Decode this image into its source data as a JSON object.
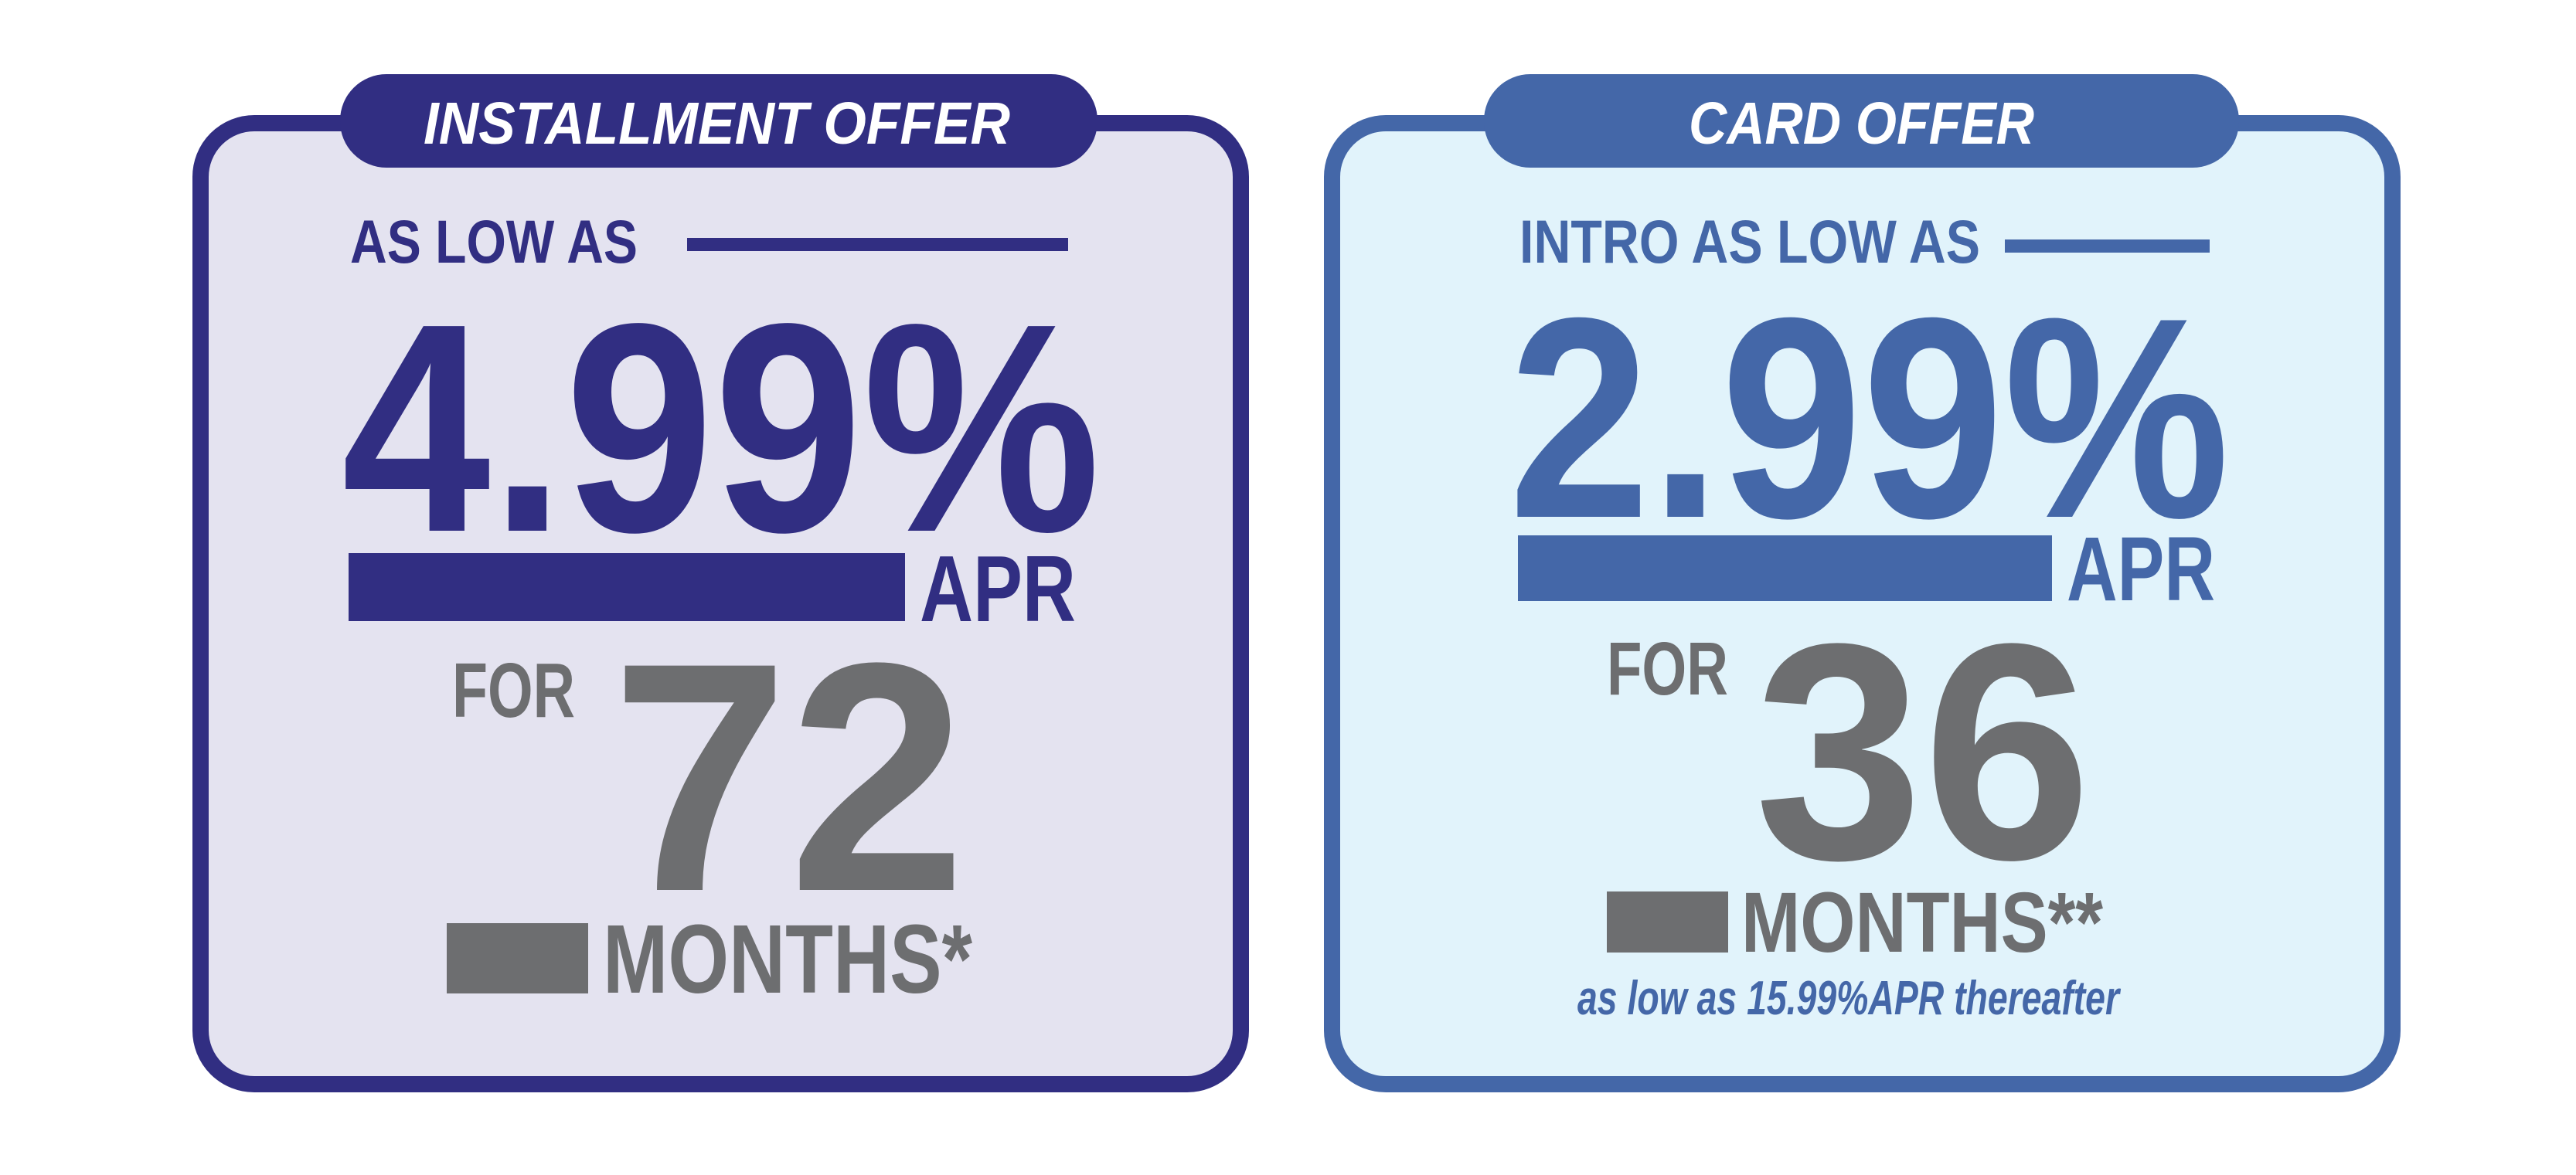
{
  "colors": {
    "installment": "#312e82",
    "installment_bg": "#e4e3f0",
    "card": "#4467a8",
    "card_bg": "#e1f3fb",
    "gray": "#6d6e70"
  },
  "installment": {
    "tab_label": "INSTALLMENT OFFER",
    "lead": "AS LOW AS",
    "rate": "4.99%",
    "apr": "APR",
    "for": "FOR",
    "term": "72",
    "months": "MONTHS*"
  },
  "card": {
    "tab_label": "CARD OFFER",
    "lead": "INTRO AS LOW AS",
    "rate": "2.99%",
    "apr": "APR",
    "for": "FOR",
    "term": "36",
    "months": "MONTHS**",
    "footnote": "as low as 15.99%APR thereafter"
  }
}
